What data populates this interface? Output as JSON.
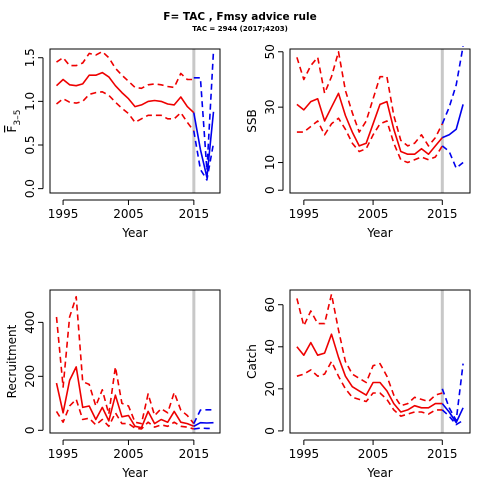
{
  "figure": {
    "title": "F= TAC , Fmsy advice rule",
    "subtitle": "TAC = 2944 (2017;4203)"
  },
  "colors": {
    "historic": "#ee0000",
    "projection": "#0000ee",
    "divider": "#c8c8c8"
  },
  "chart_data": [
    {
      "type": "line",
      "panel": "F",
      "xlabel": "Year",
      "ylabel": "F̅ 3–5",
      "ylabel_main": "F",
      "ylabel_sub": "3–5",
      "xlim": [
        1993,
        2019
      ],
      "ylim": [
        -0.05,
        1.6
      ],
      "xticks": [
        1995,
        2005,
        2015
      ],
      "yticks": [
        0.0,
        0.5,
        1.0,
        1.5
      ],
      "divider_x": 2015,
      "series": [
        {
          "role": "historic-median",
          "style": "solid",
          "color": "historic",
          "x": [
            1994,
            1995,
            1996,
            1997,
            1998,
            1999,
            2000,
            2001,
            2002,
            2003,
            2004,
            2005,
            2006,
            2007,
            2008,
            2009,
            2010,
            2011,
            2012,
            2013,
            2014,
            2015
          ],
          "y": [
            1.18,
            1.25,
            1.19,
            1.18,
            1.2,
            1.3,
            1.3,
            1.33,
            1.28,
            1.18,
            1.1,
            1.03,
            0.94,
            0.96,
            1.0,
            1.01,
            1.0,
            0.97,
            0.96,
            1.05,
            0.94,
            0.87
          ]
        },
        {
          "role": "historic-upper",
          "style": "dashed",
          "color": "historic",
          "x": [
            1994,
            1995,
            1996,
            1997,
            1998,
            1999,
            2000,
            2001,
            2002,
            2003,
            2004,
            2005,
            2006,
            2007,
            2008,
            2009,
            2010,
            2011,
            2012,
            2013,
            2014,
            2015
          ],
          "y": [
            1.45,
            1.5,
            1.41,
            1.41,
            1.44,
            1.55,
            1.53,
            1.57,
            1.5,
            1.38,
            1.3,
            1.23,
            1.16,
            1.15,
            1.19,
            1.2,
            1.19,
            1.17,
            1.16,
            1.32,
            1.25,
            1.25
          ]
        },
        {
          "role": "historic-lower",
          "style": "dashed",
          "color": "historic",
          "x": [
            1994,
            1995,
            1996,
            1997,
            1998,
            1999,
            2000,
            2001,
            2002,
            2003,
            2004,
            2005,
            2006,
            2007,
            2008,
            2009,
            2010,
            2011,
            2012,
            2013,
            2014,
            2015
          ],
          "y": [
            0.97,
            1.03,
            0.99,
            0.98,
            1.0,
            1.08,
            1.1,
            1.11,
            1.07,
            0.99,
            0.92,
            0.86,
            0.76,
            0.8,
            0.84,
            0.84,
            0.84,
            0.8,
            0.8,
            0.87,
            0.76,
            0.66
          ]
        },
        {
          "role": "projection-median",
          "style": "solid",
          "color": "projection",
          "x": [
            2015,
            2016,
            2017,
            2018
          ],
          "y": [
            0.87,
            0.45,
            0.13,
            0.88
          ]
        },
        {
          "role": "projection-upper",
          "style": "dashed",
          "color": "projection",
          "x": [
            2015,
            2016,
            2017,
            2018
          ],
          "y": [
            1.27,
            1.27,
            0.21,
            1.58
          ]
        },
        {
          "role": "projection-lower",
          "style": "dashed",
          "color": "projection",
          "x": [
            2015,
            2016,
            2017,
            2018
          ],
          "y": [
            0.66,
            0.22,
            0.1,
            0.52
          ]
        }
      ]
    },
    {
      "type": "line",
      "panel": "SSB",
      "xlabel": "Year",
      "ylabel": "SSB",
      "xlim": [
        1993,
        2019
      ],
      "ylim": [
        -1,
        51
      ],
      "xticks": [
        1995,
        2005,
        2015
      ],
      "yticks": [
        0,
        10,
        30,
        50
      ],
      "divider_x": 2015,
      "series": [
        {
          "role": "historic-median",
          "style": "solid",
          "color": "historic",
          "x": [
            1994,
            1995,
            1996,
            1997,
            1998,
            1999,
            2000,
            2001,
            2002,
            2003,
            2004,
            2005,
            2006,
            2007,
            2008,
            2009,
            2010,
            2011,
            2012,
            2013,
            2014,
            2015
          ],
          "y": [
            31,
            29,
            32,
            33,
            25,
            30,
            35,
            27,
            21,
            16,
            17,
            24,
            31,
            32,
            22,
            14,
            13,
            13,
            15,
            13,
            16,
            19
          ]
        },
        {
          "role": "historic-upper",
          "style": "dashed",
          "color": "historic",
          "x": [
            1994,
            1995,
            1996,
            1997,
            1998,
            1999,
            2000,
            2001,
            2002,
            2003,
            2004,
            2005,
            2006,
            2007,
            2008,
            2009,
            2010,
            2011,
            2012,
            2013,
            2014,
            2015
          ],
          "y": [
            48,
            40,
            45,
            48,
            35,
            41,
            50,
            36,
            28,
            21,
            25,
            33,
            41,
            41,
            27,
            18,
            16,
            17,
            20,
            16,
            19,
            24
          ]
        },
        {
          "role": "historic-lower",
          "style": "dashed",
          "color": "historic",
          "x": [
            1994,
            1995,
            1996,
            1997,
            1998,
            1999,
            2000,
            2001,
            2002,
            2003,
            2004,
            2005,
            2006,
            2007,
            2008,
            2009,
            2010,
            2011,
            2012,
            2013,
            2014,
            2015
          ],
          "y": [
            21,
            21,
            23,
            25,
            20,
            24,
            26,
            22,
            17,
            14,
            15,
            20,
            24,
            25,
            17,
            11,
            10,
            11,
            12,
            11,
            12,
            16
          ]
        },
        {
          "role": "projection-median",
          "style": "solid",
          "color": "projection",
          "x": [
            2015,
            2016,
            2017,
            2018
          ],
          "y": [
            19,
            20,
            22,
            31
          ]
        },
        {
          "role": "projection-upper",
          "style": "dashed",
          "color": "projection",
          "x": [
            2015,
            2016,
            2017,
            2018
          ],
          "y": [
            24,
            30,
            38,
            52
          ]
        },
        {
          "role": "projection-lower",
          "style": "dashed",
          "color": "projection",
          "x": [
            2015,
            2016,
            2017,
            2018
          ],
          "y": [
            16,
            14,
            8,
            10
          ]
        }
      ]
    },
    {
      "type": "line",
      "panel": "Recruitment",
      "xlabel": "Year",
      "ylabel": "Recruitment",
      "xlim": [
        1993,
        2019
      ],
      "ylim": [
        -10,
        520
      ],
      "xticks": [
        1995,
        2005,
        2015
      ],
      "yticks": [
        0,
        200,
        400
      ],
      "divider_x": 2015,
      "series": [
        {
          "role": "historic-median",
          "style": "solid",
          "color": "historic",
          "x": [
            1994,
            1995,
            1996,
            1997,
            1998,
            1999,
            2000,
            2001,
            2002,
            2003,
            2004,
            2005,
            2006,
            2007,
            2008,
            2009,
            2010,
            2011,
            2012,
            2013,
            2014,
            2015
          ],
          "y": [
            175,
            65,
            185,
            235,
            85,
            90,
            40,
            85,
            35,
            130,
            50,
            55,
            15,
            10,
            70,
            25,
            40,
            30,
            70,
            30,
            25,
            15
          ]
        },
        {
          "role": "historic-upper",
          "style": "dashed",
          "color": "historic",
          "x": [
            1994,
            1995,
            1996,
            1997,
            1998,
            1999,
            2000,
            2001,
            2002,
            2003,
            2004,
            2005,
            2006,
            2007,
            2008,
            2009,
            2010,
            2011,
            2012,
            2013,
            2014,
            2015
          ],
          "y": [
            420,
            160,
            420,
            495,
            180,
            170,
            90,
            150,
            60,
            235,
            100,
            90,
            30,
            25,
            135,
            55,
            80,
            65,
            140,
            75,
            55,
            25
          ]
        },
        {
          "role": "historic-lower",
          "style": "dashed",
          "color": "historic",
          "x": [
            1994,
            1995,
            1996,
            1997,
            1998,
            1999,
            2000,
            2001,
            2002,
            2003,
            2004,
            2005,
            2006,
            2007,
            2008,
            2009,
            2010,
            2011,
            2012,
            2013,
            2014,
            2015
          ],
          "y": [
            70,
            30,
            90,
            115,
            40,
            45,
            20,
            40,
            15,
            65,
            25,
            25,
            8,
            5,
            30,
            12,
            20,
            15,
            30,
            15,
            12,
            5
          ]
        },
        {
          "role": "projection-median",
          "style": "solid",
          "color": "projection",
          "x": [
            2015,
            2016,
            2017,
            2018
          ],
          "y": [
            15,
            28,
            27,
            28
          ]
        },
        {
          "role": "projection-upper",
          "style": "dashed",
          "color": "projection",
          "x": [
            2015,
            2016,
            2017,
            2018
          ],
          "y": [
            25,
            75,
            76,
            76
          ]
        },
        {
          "role": "projection-lower",
          "style": "dashed",
          "color": "projection",
          "x": [
            2015,
            2016,
            2017,
            2018
          ],
          "y": [
            5,
            8,
            7,
            7
          ]
        }
      ]
    },
    {
      "type": "line",
      "panel": "Catch",
      "xlabel": "Year",
      "ylabel": "Catch",
      "xlim": [
        1993,
        2019
      ],
      "ylim": [
        -1,
        67
      ],
      "xticks": [
        1995,
        2005,
        2015
      ],
      "yticks": [
        0,
        20,
        40,
        60
      ],
      "divider_x": 2015,
      "series": [
        {
          "role": "historic-median",
          "style": "solid",
          "color": "historic",
          "x": [
            1994,
            1995,
            1996,
            1997,
            1998,
            1999,
            2000,
            2001,
            2002,
            2003,
            2004,
            2005,
            2006,
            2007,
            2008,
            2009,
            2010,
            2011,
            2012,
            2013,
            2014,
            2015
          ],
          "y": [
            40,
            36,
            42,
            36,
            37,
            46,
            35,
            26,
            21,
            19,
            17,
            23,
            23,
            19,
            13,
            9,
            10,
            12,
            11,
            11,
            13,
            13
          ]
        },
        {
          "role": "historic-upper",
          "style": "dashed",
          "color": "historic",
          "x": [
            1994,
            1995,
            1996,
            1997,
            1998,
            1999,
            2000,
            2001,
            2002,
            2003,
            2004,
            2005,
            2006,
            2007,
            2008,
            2009,
            2010,
            2011,
            2012,
            2013,
            2014,
            2015
          ],
          "y": [
            63,
            50,
            57,
            51,
            51,
            65,
            48,
            33,
            27,
            25,
            23,
            31,
            32,
            26,
            17,
            12,
            13,
            16,
            15,
            14,
            17,
            18
          ]
        },
        {
          "role": "historic-lower",
          "style": "dashed",
          "color": "historic",
          "x": [
            1994,
            1995,
            1996,
            1997,
            1998,
            1999,
            2000,
            2001,
            2002,
            2003,
            2004,
            2005,
            2006,
            2007,
            2008,
            2009,
            2010,
            2011,
            2012,
            2013,
            2014,
            2015
          ],
          "y": [
            26,
            27,
            29,
            26,
            27,
            33,
            26,
            20,
            16,
            15,
            14,
            18,
            18,
            15,
            10,
            7,
            8,
            9,
            9,
            8,
            10,
            10
          ]
        },
        {
          "role": "projection-median",
          "style": "solid",
          "color": "projection",
          "x": [
            2015,
            2016,
            2017,
            2018
          ],
          "y": [
            13,
            9,
            4,
            11
          ]
        },
        {
          "role": "projection-upper",
          "style": "dashed",
          "color": "projection",
          "x": [
            2015,
            2016,
            2017,
            2018
          ],
          "y": [
            20,
            11,
            5,
            32
          ]
        },
        {
          "role": "projection-lower",
          "style": "dashed",
          "color": "projection",
          "x": [
            2015,
            2016,
            2017,
            2018
          ],
          "y": [
            10,
            7,
            3,
            5
          ]
        }
      ]
    }
  ]
}
